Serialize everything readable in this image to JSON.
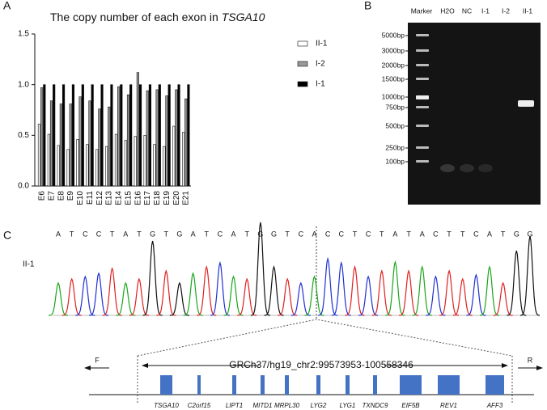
{
  "panels": {
    "a": "A",
    "b": "B",
    "c": "C"
  },
  "chart_data": {
    "type": "bar",
    "title": "The copy number of each exon in",
    "title_gene": "TSGA10",
    "categories": [
      "E6",
      "E7",
      "E8",
      "E9",
      "E10",
      "E11",
      "E12",
      "E13",
      "E14",
      "E15",
      "E16",
      "E17",
      "E18",
      "E19",
      "E20",
      "E21"
    ],
    "series": [
      {
        "name": "II-1",
        "color": "#ffffff",
        "values": [
          0.61,
          0.51,
          0.4,
          0.36,
          0.46,
          0.41,
          0.36,
          0.39,
          0.51,
          0.45,
          0.49,
          0.5,
          0.41,
          0.39,
          0.59,
          0.53
        ]
      },
      {
        "name": "I-2",
        "color": "#999999",
        "values": [
          0.97,
          0.84,
          0.81,
          0.81,
          0.88,
          0.84,
          0.76,
          0.78,
          0.98,
          0.9,
          1.12,
          0.94,
          0.95,
          0.89,
          0.95,
          0.86
        ]
      },
      {
        "name": "I-1",
        "color": "#000000",
        "values": [
          1.0,
          1.0,
          1.0,
          1.0,
          1.0,
          1.0,
          1.0,
          1.0,
          1.0,
          1.0,
          1.0,
          1.0,
          1.0,
          1.0,
          1.0,
          1.0
        ]
      }
    ],
    "ylim": [
      0,
      1.5
    ],
    "yticks": [
      {
        "value": 0,
        "label": "0.0"
      },
      {
        "value": 0.5,
        "label": "0.5"
      },
      {
        "value": 1,
        "label": "1.0"
      },
      {
        "value": 1.5,
        "label": "1.5"
      }
    ],
    "legend": "right",
    "grid": false
  },
  "gel": {
    "lanes": [
      "Marker",
      "H2O",
      "NC",
      "I-1",
      "I-2",
      "II-1"
    ],
    "ladder": [
      "5000bp",
      "3000bp",
      "2000bp",
      "1500bp",
      "1000bp",
      "750bp",
      "500bp",
      "250bp",
      "100bp"
    ]
  },
  "trace": {
    "sample": "II-1",
    "sequence": [
      "A",
      "T",
      "C",
      "C",
      "T",
      "A",
      "T",
      "G",
      "T",
      "G",
      "A",
      "T",
      "C",
      "A",
      "T",
      "G",
      "G",
      "T",
      "C",
      "A",
      "C",
      "C",
      "T",
      "C",
      "T",
      "A",
      "T",
      "A",
      "C",
      "T",
      "T",
      "C",
      "A",
      "T",
      "G",
      "G"
    ],
    "base_colors": {
      "A": "#1aa51a",
      "T": "#e02020",
      "C": "#2030d0",
      "G": "#111111"
    }
  },
  "locus": {
    "region": "GRCh37/hg19_chr2:99573953-100558346",
    "forward": "F",
    "reverse": "R",
    "genes": [
      "TSGA10",
      "C2orf15",
      "LIPT1",
      "MITD1",
      "MRPL30",
      "LYG2",
      "LYG1",
      "TXNDC9",
      "EIF5B",
      "REV1",
      "AFF3"
    ]
  }
}
